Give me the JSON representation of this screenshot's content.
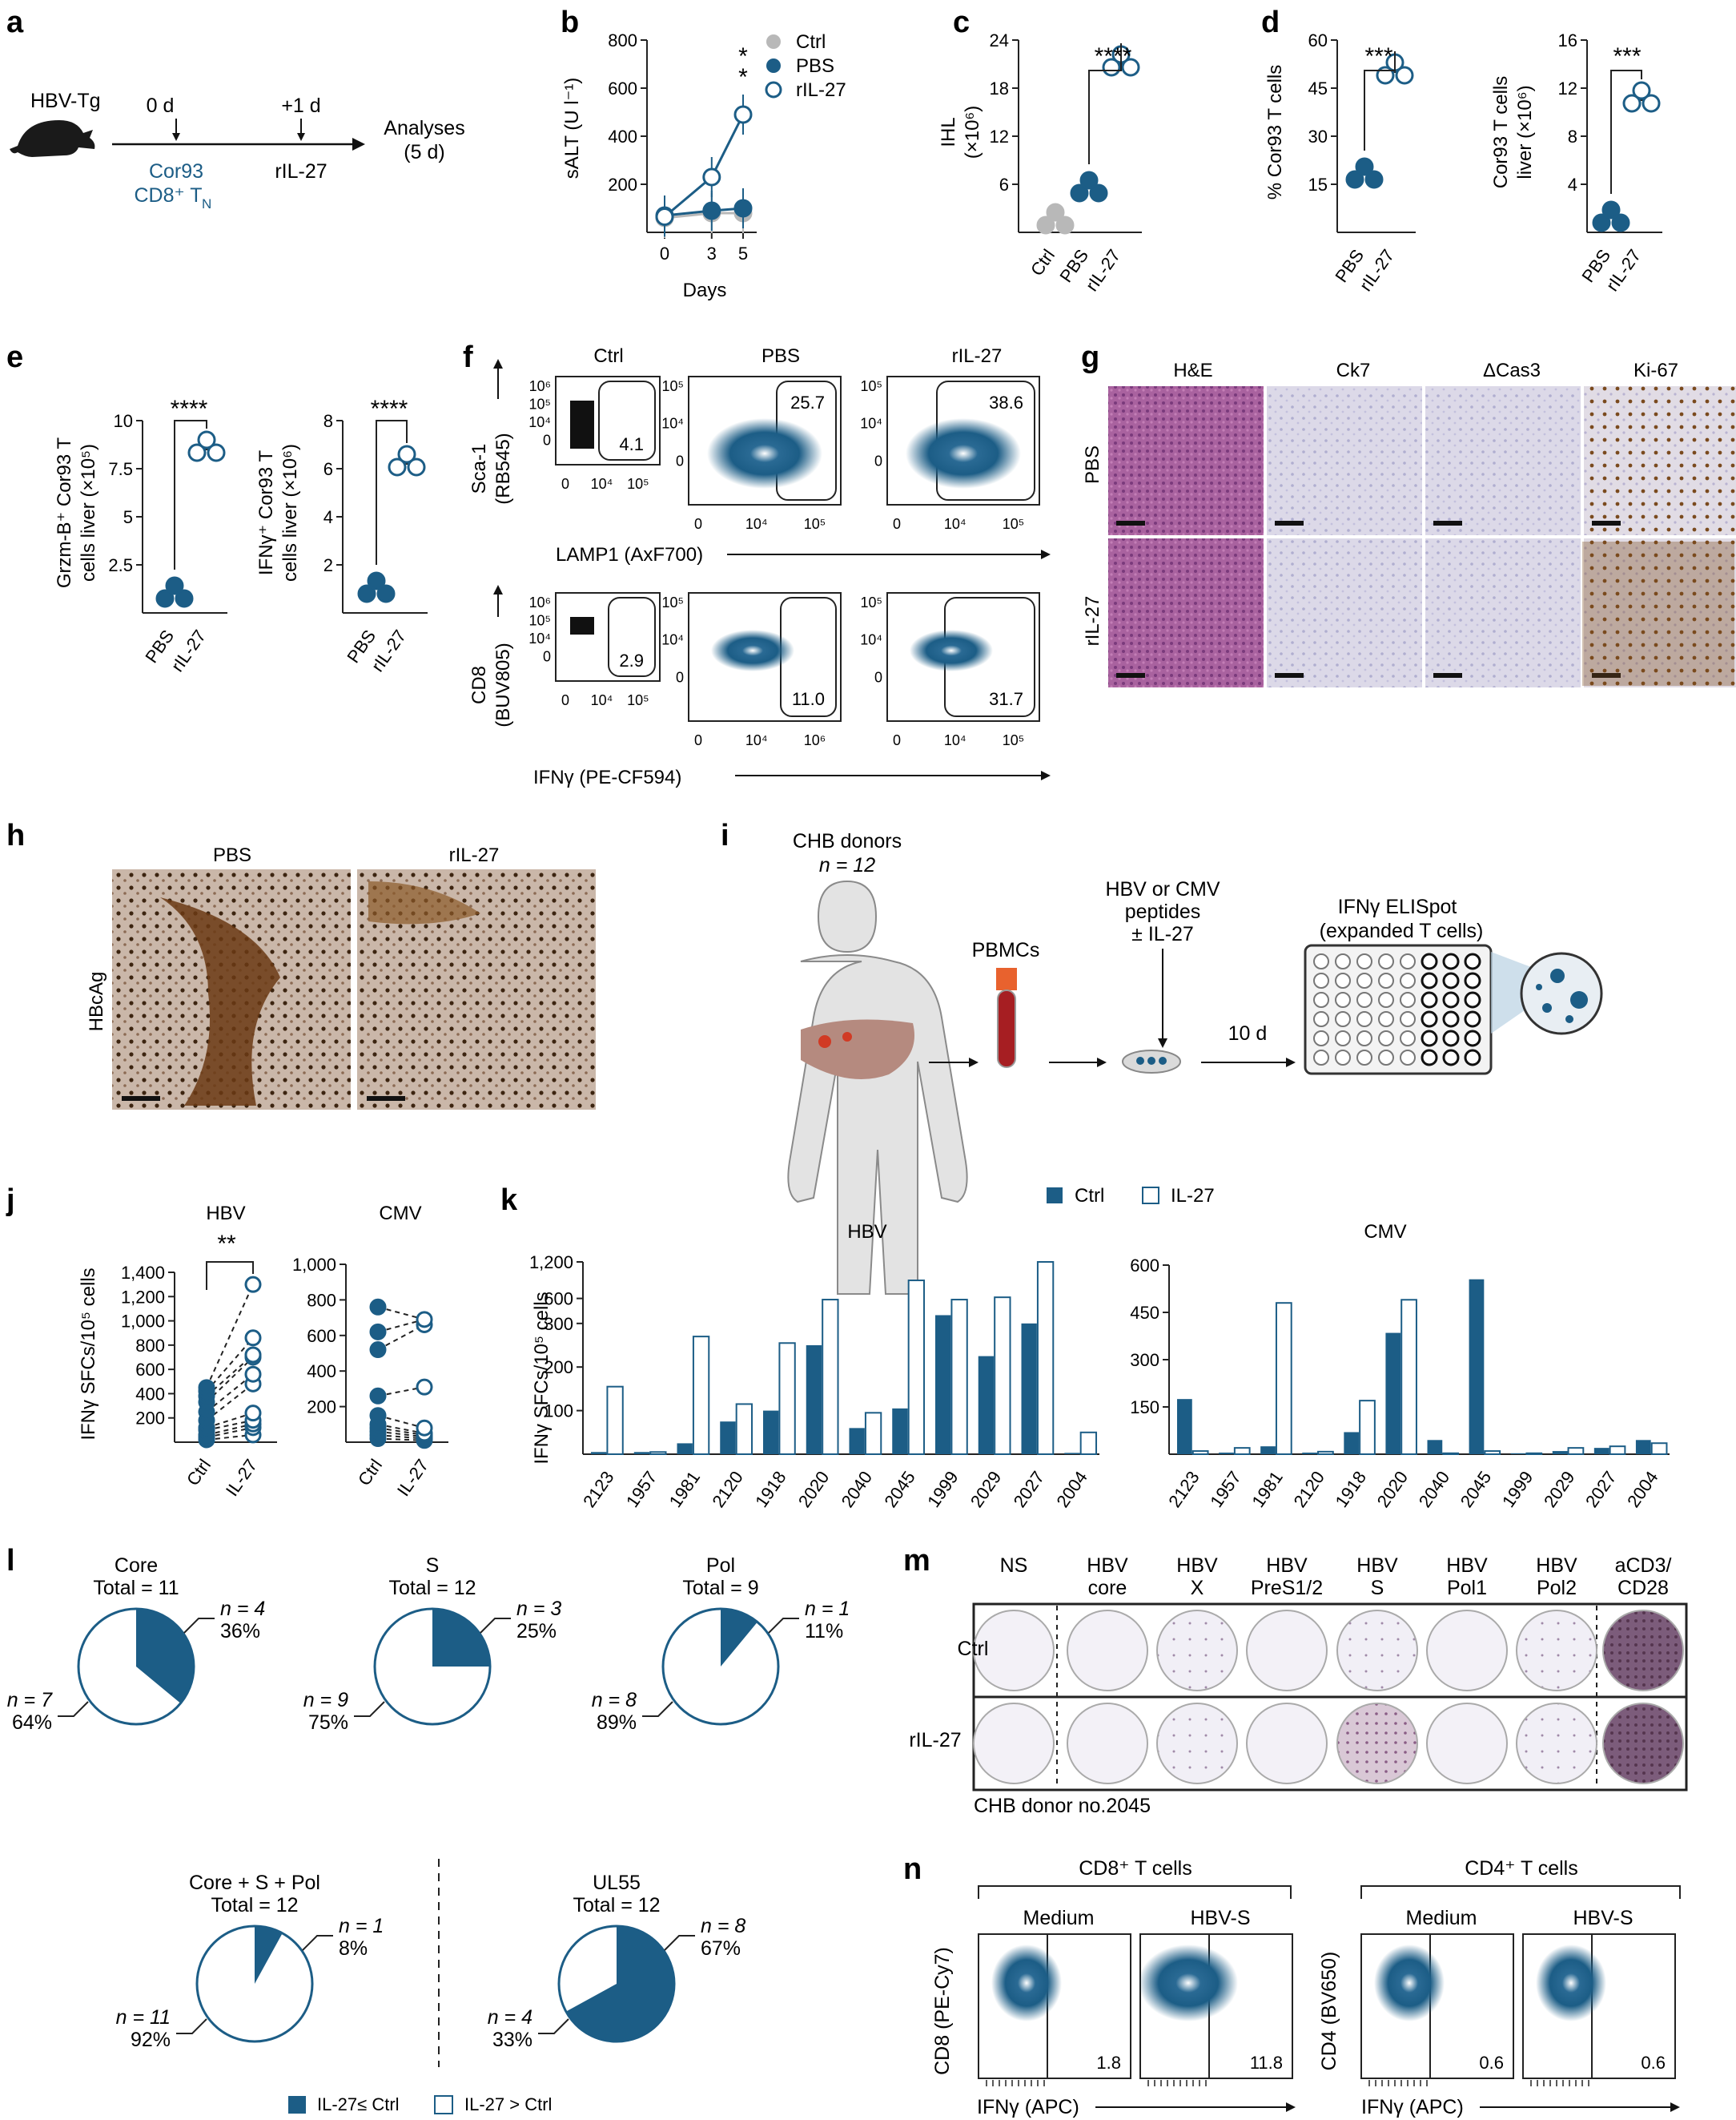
{
  "colors": {
    "blue": "#1c5d86",
    "grey": "#b8b8b8",
    "text": "#222222"
  },
  "panel_letters": [
    "a",
    "b",
    "c",
    "d",
    "e",
    "f",
    "g",
    "h",
    "i",
    "j",
    "k",
    "l",
    "m",
    "n"
  ],
  "a": {
    "mouse": "HBV-Tg",
    "day0": "0 d",
    "day1": "+1 d",
    "cells_line1": "Cor93",
    "cells_line2": "CD8⁺ T",
    "cells_sub": "N",
    "treat": "rIL-27",
    "analysis_line1": "Analyses",
    "analysis_line2": "(5 d)"
  },
  "b": {
    "ylabel": "sALT (U l⁻¹)",
    "xlabel": "Days",
    "sig1": "*",
    "sig2": "*"
  },
  "c": {
    "ylabel_line1": "IHL",
    "ylabel_line2": "(×10⁶)",
    "sig": "****"
  },
  "d": {
    "ylabel1": "% Cor93 T cells",
    "sig1": "***",
    "ylabel2_line1": "Cor93 T cells",
    "ylabel2_line2": "liver (×10⁶)",
    "sig2": "***"
  },
  "e": {
    "ylabel1_line1": "Grzm-B⁺ Cor93 T",
    "ylabel1_line2": "cells liver (×10⁵)",
    "sig1": "****",
    "ylabel2_line1": "IFNγ⁺ Cor93 T",
    "ylabel2_line2": "cells liver (×10⁶)",
    "sig2": "****"
  },
  "f": {
    "cols": [
      "Ctrl",
      "PBS",
      "rIL-27"
    ],
    "row1_ylabel_line1": "Sca-1",
    "row1_ylabel_line2": "(RB545)",
    "row1_xlabel": "LAMP1 (AxF700)",
    "row2_ylabel_line1": "CD8",
    "row2_ylabel_line2": "(BUV805)",
    "row2_xlabel": "IFNγ (PE-CF594)",
    "row1_pct": [
      "4.1",
      "25.7",
      "38.6"
    ],
    "row2_pct": [
      "2.9",
      "11.0",
      "31.7"
    ],
    "ticks_y_ctrl": [
      "10⁶",
      "10⁵",
      "10⁴",
      "0"
    ],
    "ticks_y": [
      "10⁵",
      "10⁴",
      "0"
    ],
    "ticks_x": [
      "0",
      "10⁴",
      "10⁵"
    ],
    "ticks_x_r2c2": [
      "0",
      "10⁴",
      "10⁶"
    ]
  },
  "g": {
    "cols": [
      "H&E",
      "Ck7",
      "ΔCas3",
      "Ki-67"
    ],
    "rows": [
      "PBS",
      "rIL-27"
    ]
  },
  "h": {
    "cols": [
      "PBS",
      "rIL-27"
    ],
    "row": "HBcAg"
  },
  "i": {
    "donors": "CHB donors",
    "n": "n = 12",
    "pbmc": "PBMCs",
    "pep_line1": "HBV or CMV",
    "pep_line2": "peptides",
    "pep_line3": "± IL-27",
    "days": "10 d",
    "elispot_line1": "IFNγ ELISpot",
    "elispot_line2": "(expanded T cells)"
  },
  "j": {
    "ylabel": "IFNγ SFCs/10⁵ cells",
    "hbv": "HBV",
    "cmv": "CMV",
    "sig": "**",
    "xcats": [
      "Ctrl",
      "IL-27"
    ]
  },
  "k": {
    "ylabel": "IFNγ SFCs/10⁵ cells",
    "legend_ctrl": "Ctrl",
    "legend_il27": "IL-27",
    "hbv": "HBV",
    "cmv": "CMV"
  },
  "l": {
    "pies": [
      {
        "title": "Core",
        "total": "Total = 11",
        "n_small": "n = 4",
        "p_small": "36%",
        "n_big": "n = 7",
        "p_big": "64%"
      },
      {
        "title": "S",
        "total": "Total = 12",
        "n_small": "n = 3",
        "p_small": "25%",
        "n_big": "n = 9",
        "p_big": "75%"
      },
      {
        "title": "Pol",
        "total": "Total = 9",
        "n_small": "n = 1",
        "p_small": "11%",
        "n_big": "n = 8",
        "p_big": "89%"
      },
      {
        "title": "Core + S + Pol",
        "total": "Total = 12",
        "n_small": "n = 1",
        "p_small": "8%",
        "n_big": "n = 11",
        "p_big": "92%"
      },
      {
        "title": "UL55",
        "total": "Total = 12",
        "n_small": "n = 8",
        "p_small": "67%",
        "n_big": "n = 4",
        "p_big": "33%"
      }
    ],
    "legend_filled": "IL-27≤ Ctrl",
    "legend_open": "IL-27 > Ctrl"
  },
  "m": {
    "cols": [
      [
        "NS",
        ""
      ],
      [
        "HBV",
        "core"
      ],
      [
        "HBV",
        "X"
      ],
      [
        "HBV",
        "PreS1/2"
      ],
      [
        "HBV",
        "S"
      ],
      [
        "HBV",
        "Pol1"
      ],
      [
        "HBV",
        "Pol2"
      ],
      [
        "aCD3/",
        "CD28"
      ]
    ],
    "rows": [
      "Ctrl",
      "rIL-27"
    ],
    "donor": "CHB donor no.2045"
  },
  "n": {
    "group1": "CD8⁺ T cells",
    "group2": "CD4⁺ T cells",
    "cols": [
      "Medium",
      "HBV-S",
      "Medium",
      "HBV-S"
    ],
    "pct": [
      "1.8",
      "11.8",
      "0.6",
      "0.6"
    ],
    "ylabel1": "CD8 (PE-Cy7)",
    "ylabel2": "CD4 (BV650)",
    "xlabel1": "IFNγ (APC)",
    "xlabel2": "IFNγ (APC)"
  },
  "chart_data": [
    {
      "id": "b",
      "type": "line",
      "x": [
        0,
        3,
        5
      ],
      "ylim": [
        0,
        800
      ],
      "yticks": [
        200,
        400,
        600,
        800
      ],
      "series": [
        {
          "name": "Ctrl",
          "values": [
            60,
            80,
            80
          ]
        },
        {
          "name": "PBS",
          "values": [
            70,
            90,
            100
          ]
        },
        {
          "name": "rIL-27",
          "values": [
            65,
            230,
            490
          ]
        }
      ]
    },
    {
      "id": "c",
      "type": "scatter",
      "categories": [
        "Ctrl",
        "PBS",
        "rIL-27"
      ],
      "ylim": [
        0,
        24
      ],
      "yticks": [
        6,
        12,
        18,
        24
      ],
      "values": [
        1.5,
        5.5,
        21
      ]
    },
    {
      "id": "d1",
      "type": "scatter",
      "categories": [
        "PBS",
        "rIL-27"
      ],
      "ylim": [
        0,
        60
      ],
      "yticks": [
        15,
        30,
        45,
        60
      ],
      "values": [
        18,
        50
      ]
    },
    {
      "id": "d2",
      "type": "scatter",
      "categories": [
        "PBS",
        "rIL-27"
      ],
      "ylim": [
        0,
        16
      ],
      "yticks": [
        4,
        8,
        12,
        16
      ],
      "values": [
        1.2,
        11
      ]
    },
    {
      "id": "e1",
      "type": "scatter",
      "categories": [
        "PBS",
        "rIL-27"
      ],
      "ylim": [
        0,
        10
      ],
      "yticks": [
        2.5,
        5,
        7.5,
        10
      ],
      "values": [
        1,
        8.5
      ]
    },
    {
      "id": "e2",
      "type": "scatter",
      "categories": [
        "PBS",
        "rIL-27"
      ],
      "ylim": [
        0,
        8
      ],
      "yticks": [
        2,
        4,
        6,
        8
      ],
      "values": [
        1,
        6.2
      ]
    },
    {
      "id": "j_hbv",
      "type": "scatter",
      "categories": [
        "Ctrl",
        "IL-27"
      ],
      "ylim": [
        0,
        1400
      ],
      "yticks": [
        200,
        400,
        600,
        800,
        1000,
        1200,
        1400
      ],
      "ctrl": [
        20,
        40,
        60,
        100,
        120,
        180,
        250,
        330,
        380,
        420,
        450
      ],
      "il27": [
        60,
        120,
        150,
        180,
        240,
        480,
        560,
        700,
        720,
        860,
        1300
      ]
    },
    {
      "id": "j_cmv",
      "type": "scatter",
      "categories": [
        "Ctrl",
        "IL-27"
      ],
      "ylim": [
        0,
        1000
      ],
      "yticks": [
        200,
        400,
        600,
        800,
        1000
      ],
      "ctrl": [
        20,
        40,
        60,
        80,
        100,
        150,
        260,
        520,
        620,
        760
      ],
      "il27": [
        10,
        20,
        30,
        40,
        50,
        80,
        310,
        660,
        690
      ]
    },
    {
      "id": "k_hbv",
      "type": "bar",
      "categories": [
        "2123",
        "1957",
        "1981",
        "2120",
        "1918",
        "2020",
        "2040",
        "2045",
        "1999",
        "2029",
        "2027",
        "2004"
      ],
      "yticks": [
        100,
        200,
        300,
        600,
        1200
      ],
      "series": [
        {
          "name": "Ctrl",
          "values": [
            5,
            5,
            25,
            75,
            100,
            250,
            60,
            105,
            310,
            225,
            300,
            3
          ]
        },
        {
          "name": "IL-27",
          "values": [
            155,
            5,
            270,
            115,
            255,
            580,
            95,
            800,
            580,
            620,
            1200,
            50
          ]
        }
      ]
    },
    {
      "id": "k_cmv",
      "type": "bar",
      "categories": [
        "2123",
        "1957",
        "1981",
        "2120",
        "1918",
        "2020",
        "2040",
        "2045",
        "1999",
        "2029",
        "2027",
        "2004"
      ],
      "ylim": [
        0,
        600
      ],
      "yticks": [
        150,
        300,
        450,
        600
      ],
      "series": [
        {
          "name": "Ctrl",
          "values": [
            175,
            5,
            25,
            5,
            70,
            385,
            45,
            555,
            3,
            10,
            20,
            45
          ]
        },
        {
          "name": "IL-27",
          "values": [
            10,
            20,
            480,
            8,
            170,
            490,
            3,
            10,
            3,
            20,
            25,
            35
          ]
        }
      ]
    },
    {
      "id": "l",
      "type": "pie",
      "slices": [
        [
          36,
          64
        ],
        [
          25,
          75
        ],
        [
          11,
          89
        ],
        [
          8,
          92
        ],
        [
          67,
          33
        ]
      ]
    }
  ]
}
